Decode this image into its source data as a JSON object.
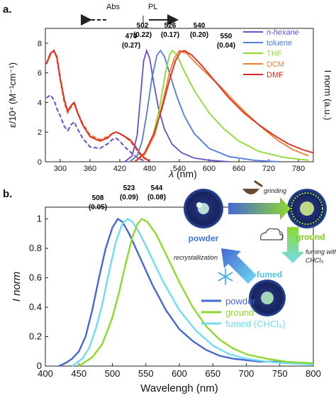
{
  "chart_data": [
    {
      "type": "line",
      "panel_label": "a.",
      "xlabel_italic": "λ",
      "xlabel_rest": " (nm)",
      "ylabel_left": "ε/10⁴ (M⁻¹cm⁻¹)",
      "ylabel_right": "I norm (a.u.)",
      "xlim": [
        270,
        810
      ],
      "ylim": [
        0,
        9
      ],
      "x_ticks": [
        300,
        360,
        420,
        480,
        540,
        600,
        660,
        720,
        780
      ],
      "y_ticks": [
        0,
        2,
        4,
        6,
        8
      ],
      "arrow_labels": {
        "abs": "Abs",
        "pl": "PL"
      },
      "legend_position": "top-right",
      "series": [
        {
          "name": "n-hexane",
          "color": "#6a4fd0"
        },
        {
          "name": "toluene",
          "color": "#4f7de0"
        },
        {
          "name": "THF",
          "color": "#8fd92e"
        },
        {
          "name": "DCM",
          "color": "#ef7e2f"
        },
        {
          "name": "DMF",
          "color": "#e02a20"
        }
      ],
      "peak_labels": [
        {
          "wavelength": "474",
          "qy": "(0.27)",
          "color": "#6a4fd0"
        },
        {
          "wavelength": "502",
          "qy": "(0.22)",
          "color": "#4f7de0"
        },
        {
          "wavelength": "526",
          "qy": "(0.17)",
          "color": "#8fd92e"
        },
        {
          "wavelength": "540",
          "qy": "(0.20)",
          "color": "#ef7e2f"
        },
        {
          "wavelength": "550",
          "qy": "(0.04)",
          "color": "#e02a20"
        }
      ],
      "absorption_curves": [
        {
          "series": "n-hexane",
          "style": "dashed",
          "points": [
            [
              272,
              4.3
            ],
            [
              280,
              4.5
            ],
            [
              287,
              4.2
            ],
            [
              293,
              3.6
            ],
            [
              300,
              3.1
            ],
            [
              308,
              2.4
            ],
            [
              315,
              2.1
            ],
            [
              322,
              2.5
            ],
            [
              328,
              2.7
            ],
            [
              335,
              2.2
            ],
            [
              345,
              1.6
            ],
            [
              360,
              1.0
            ],
            [
              380,
              0.9
            ],
            [
              395,
              1.2
            ],
            [
              405,
              1.5
            ],
            [
              412,
              1.6
            ],
            [
              420,
              1.4
            ],
            [
              430,
              1.0
            ],
            [
              440,
              0.7
            ],
            [
              450,
              0.4
            ],
            [
              460,
              0.2
            ],
            [
              470,
              0.05
            ]
          ]
        },
        {
          "series": "DCM",
          "style": "dashed",
          "points": [
            [
              272,
              6.6
            ],
            [
              280,
              7.2
            ],
            [
              287,
              7.5
            ],
            [
              293,
              7.0
            ],
            [
              300,
              5.5
            ],
            [
              308,
              4.0
            ],
            [
              315,
              3.3
            ],
            [
              322,
              3.7
            ],
            [
              328,
              3.9
            ],
            [
              335,
              3.3
            ],
            [
              345,
              2.6
            ],
            [
              360,
              1.8
            ],
            [
              380,
              1.5
            ],
            [
              395,
              1.7
            ],
            [
              405,
              1.9
            ],
            [
              412,
              2.0
            ],
            [
              420,
              1.9
            ],
            [
              430,
              1.7
            ],
            [
              440,
              1.4
            ],
            [
              450,
              1.0
            ],
            [
              460,
              0.5
            ],
            [
              470,
              0.2
            ],
            [
              480,
              0.05
            ]
          ]
        },
        {
          "series": "DMF",
          "style": "solid",
          "points": [
            [
              272,
              6.6
            ],
            [
              280,
              7.3
            ],
            [
              287,
              7.5
            ],
            [
              293,
              7.1
            ],
            [
              300,
              5.6
            ],
            [
              308,
              4.2
            ],
            [
              315,
              3.4
            ],
            [
              322,
              3.8
            ],
            [
              328,
              4.0
            ],
            [
              335,
              3.3
            ],
            [
              345,
              2.5
            ],
            [
              360,
              1.7
            ],
            [
              380,
              1.4
            ],
            [
              395,
              1.6
            ],
            [
              405,
              1.9
            ],
            [
              412,
              2.0
            ],
            [
              420,
              1.9
            ],
            [
              430,
              1.7
            ],
            [
              440,
              1.5
            ],
            [
              450,
              1.1
            ],
            [
              460,
              0.6
            ],
            [
              470,
              0.25
            ],
            [
              480,
              0.05
            ]
          ]
        }
      ],
      "emission_curves": [
        {
          "series": "n-hexane",
          "points": [
            [
              430,
              0.0
            ],
            [
              445,
              0.4
            ],
            [
              455,
              1.8
            ],
            [
              462,
              4.5
            ],
            [
              468,
              6.8
            ],
            [
              474,
              7.5
            ],
            [
              480,
              7.0
            ],
            [
              488,
              5.4
            ],
            [
              498,
              3.6
            ],
            [
              510,
              2.2
            ],
            [
              525,
              1.2
            ],
            [
              545,
              0.6
            ],
            [
              570,
              0.25
            ],
            [
              600,
              0.1
            ],
            [
              640,
              0.0
            ]
          ]
        },
        {
          "series": "toluene",
          "points": [
            [
              440,
              0.0
            ],
            [
              455,
              0.4
            ],
            [
              465,
              1.4
            ],
            [
              475,
              3.4
            ],
            [
              485,
              5.7
            ],
            [
              495,
              7.2
            ],
            [
              502,
              7.5
            ],
            [
              510,
              7.1
            ],
            [
              520,
              6.0
            ],
            [
              535,
              4.4
            ],
            [
              550,
              3.1
            ],
            [
              570,
              1.9
            ],
            [
              600,
              0.9
            ],
            [
              640,
              0.35
            ],
            [
              690,
              0.1
            ],
            [
              740,
              0.0
            ]
          ]
        },
        {
          "series": "THF",
          "points": [
            [
              450,
              0.0
            ],
            [
              470,
              0.5
            ],
            [
              485,
              1.5
            ],
            [
              500,
              3.6
            ],
            [
              512,
              6.0
            ],
            [
              520,
              7.2
            ],
            [
              526,
              7.5
            ],
            [
              535,
              7.2
            ],
            [
              550,
              6.1
            ],
            [
              570,
              4.8
            ],
            [
              600,
              3.3
            ],
            [
              630,
              2.2
            ],
            [
              660,
              1.4
            ],
            [
              700,
              0.7
            ],
            [
              750,
              0.3
            ],
            [
              800,
              0.1
            ]
          ]
        },
        {
          "series": "DCM",
          "points": [
            [
              450,
              0.0
            ],
            [
              470,
              0.5
            ],
            [
              490,
              1.8
            ],
            [
              505,
              3.8
            ],
            [
              520,
              6.0
            ],
            [
              530,
              7.0
            ],
            [
              540,
              7.5
            ],
            [
              555,
              7.3
            ],
            [
              575,
              6.6
            ],
            [
              600,
              5.8
            ],
            [
              625,
              5.0
            ],
            [
              650,
              4.1
            ],
            [
              680,
              3.1
            ],
            [
              710,
              2.2
            ],
            [
              740,
              1.4
            ],
            [
              770,
              0.8
            ],
            [
              800,
              0.4
            ]
          ]
        },
        {
          "series": "DMF",
          "points": [
            [
              450,
              0.0
            ],
            [
              470,
              0.6
            ],
            [
              490,
              2.0
            ],
            [
              505,
              3.6
            ],
            [
              520,
              5.5
            ],
            [
              532,
              6.8
            ],
            [
              542,
              7.4
            ],
            [
              550,
              7.5
            ],
            [
              565,
              7.2
            ],
            [
              585,
              6.5
            ],
            [
              610,
              5.5
            ],
            [
              640,
              4.3
            ],
            [
              670,
              3.3
            ],
            [
              700,
              2.5
            ],
            [
              730,
              1.8
            ],
            [
              760,
              1.2
            ],
            [
              790,
              0.8
            ],
            [
              810,
              0.6
            ]
          ]
        }
      ]
    },
    {
      "type": "line",
      "panel_label": "b.",
      "xlabel": "Wavelengh (nm)",
      "ylabel": "I norm",
      "xlim": [
        400,
        800
      ],
      "ylim": [
        0,
        1.08
      ],
      "x_ticks": [
        400,
        450,
        500,
        550,
        600,
        650,
        700,
        750,
        800
      ],
      "y_ticks": [
        0,
        0.2,
        0.4,
        0.6,
        0.8,
        1
      ],
      "y_tick_labels": [
        "0",
        "0.2",
        "0.4",
        "0.6",
        "0.8",
        "1"
      ],
      "legend_position": "bottom-right",
      "series": [
        {
          "name": "powder",
          "color": "#4668d4"
        },
        {
          "name": "ground",
          "color": "#8fd92e"
        },
        {
          "name": "fumed (CHCl₃)",
          "color": "#6fdcf0"
        }
      ],
      "peak_labels": [
        {
          "wavelength": "508",
          "qy": "(0.05)",
          "color": "#4668d4"
        },
        {
          "wavelength": "523",
          "qy": "(0.09)",
          "color": "#5fcde6"
        },
        {
          "wavelength": "544",
          "qy": "(0.08)",
          "color": "#8fd92e"
        }
      ],
      "curves": [
        {
          "series": "powder",
          "points": [
            [
              420,
              0.0
            ],
            [
              430,
              0.02
            ],
            [
              440,
              0.05
            ],
            [
              450,
              0.1
            ],
            [
              460,
              0.2
            ],
            [
              470,
              0.38
            ],
            [
              480,
              0.6
            ],
            [
              490,
              0.8
            ],
            [
              500,
              0.94
            ],
            [
              508,
              1.0
            ],
            [
              515,
              0.98
            ],
            [
              525,
              0.9
            ],
            [
              540,
              0.75
            ],
            [
              560,
              0.55
            ],
            [
              580,
              0.38
            ],
            [
              600,
              0.25
            ],
            [
              620,
              0.17
            ],
            [
              640,
              0.11
            ],
            [
              660,
              0.07
            ],
            [
              680,
              0.05
            ],
            [
              700,
              0.04
            ],
            [
              720,
              0.03
            ],
            [
              750,
              0.03
            ],
            [
              780,
              0.02
            ],
            [
              800,
              0.02
            ]
          ]
        },
        {
          "series": "fumed (CHCl₃)",
          "points": [
            [
              440,
              0.0
            ],
            [
              455,
              0.05
            ],
            [
              465,
              0.12
            ],
            [
              475,
              0.25
            ],
            [
              485,
              0.42
            ],
            [
              495,
              0.64
            ],
            [
              505,
              0.84
            ],
            [
              515,
              0.97
            ],
            [
              523,
              1.0
            ],
            [
              530,
              0.98
            ],
            [
              540,
              0.91
            ],
            [
              555,
              0.77
            ],
            [
              575,
              0.58
            ],
            [
              600,
              0.38
            ],
            [
              625,
              0.24
            ],
            [
              650,
              0.14
            ],
            [
              675,
              0.08
            ],
            [
              700,
              0.05
            ],
            [
              730,
              0.03
            ],
            [
              760,
              0.02
            ],
            [
              800,
              0.01
            ]
          ]
        },
        {
          "series": "ground",
          "points": [
            [
              450,
              0.0
            ],
            [
              470,
              0.06
            ],
            [
              485,
              0.15
            ],
            [
              500,
              0.33
            ],
            [
              510,
              0.5
            ],
            [
              520,
              0.7
            ],
            [
              530,
              0.88
            ],
            [
              538,
              0.97
            ],
            [
              544,
              1.0
            ],
            [
              552,
              0.98
            ],
            [
              565,
              0.9
            ],
            [
              580,
              0.76
            ],
            [
              600,
              0.57
            ],
            [
              620,
              0.4
            ],
            [
              640,
              0.27
            ],
            [
              660,
              0.18
            ],
            [
              680,
              0.12
            ],
            [
              700,
              0.08
            ],
            [
              730,
              0.05
            ],
            [
              760,
              0.03
            ],
            [
              800,
              0.02
            ]
          ]
        }
      ],
      "scheme": {
        "nodes": {
          "powder": "powder",
          "ground": "ground",
          "fumed": "fumed"
        },
        "labels": {
          "grinding": "grinding",
          "recrystallization": "recrystallization",
          "fuming_line1": "fuming with",
          "fuming_line2": "CHCl₃"
        }
      }
    }
  ]
}
